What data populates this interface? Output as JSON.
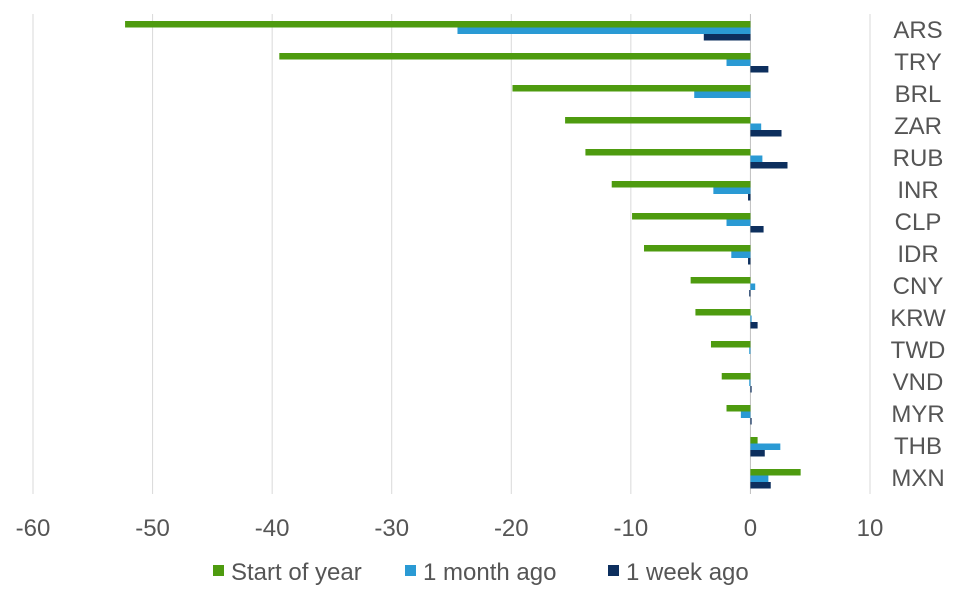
{
  "chart_data": {
    "type": "bar",
    "orientation": "horizontal",
    "categories": [
      "ARS",
      "TRY",
      "BRL",
      "ZAR",
      "RUB",
      "INR",
      "CLP",
      "IDR",
      "CNY",
      "KRW",
      "TWD",
      "VND",
      "MYR",
      "THB",
      "MXN"
    ],
    "series": [
      {
        "name": "Start of year",
        "color": "#4e9b0f",
        "values": [
          -52.3,
          -39.4,
          -19.9,
          -15.5,
          -13.8,
          -11.6,
          -9.9,
          -8.9,
          -5.0,
          -4.6,
          -3.3,
          -2.4,
          -2.0,
          0.6,
          4.2
        ]
      },
      {
        "name": "1 month ago",
        "color": "#2a9ad4",
        "values": [
          -24.5,
          -2.0,
          -4.7,
          0.9,
          1.0,
          -3.1,
          -2.0,
          -1.6,
          0.4,
          0.1,
          -0.1,
          -0.1,
          -0.8,
          2.5,
          1.5
        ]
      },
      {
        "name": "1 week ago",
        "color": "#0d2f5e",
        "values": [
          -3.9,
          1.5,
          0.0,
          2.6,
          3.1,
          -0.2,
          1.1,
          -0.2,
          -0.1,
          0.6,
          0.0,
          0.1,
          0.1,
          1.2,
          1.7
        ]
      }
    ],
    "xlim": [
      -60,
      10
    ],
    "xticks": [
      "-60",
      "-50",
      "-40",
      "-30",
      "-20",
      "-10",
      "0",
      "10"
    ],
    "grid": true,
    "legend": "bottom",
    "colors": {
      "gridline": "#d9d9d9",
      "zero_line": "#bfbfbf",
      "text": "#555555"
    }
  }
}
